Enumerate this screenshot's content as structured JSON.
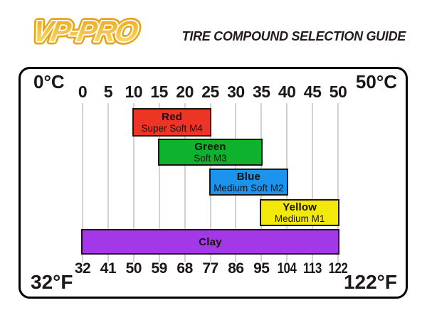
{
  "header": {
    "logo": "VP-PRO",
    "title": "TIRE COMPOUND SELECTION GUIDE"
  },
  "chart_data": {
    "type": "bar",
    "subtype": "horizontal-range-gantt",
    "title": "TIRE COMPOUND SELECTION GUIDE",
    "grid": true,
    "axis_top": {
      "unit": "°C",
      "min": 0,
      "max": 50,
      "ticks": [
        0,
        5,
        10,
        15,
        20,
        25,
        30,
        35,
        40,
        45,
        50
      ],
      "left_label": "0°C",
      "right_label": "50°C"
    },
    "axis_bottom": {
      "unit": "°F",
      "min": 32,
      "max": 122,
      "ticks": [
        32,
        41,
        50,
        59,
        68,
        77,
        86,
        95,
        104,
        113,
        122
      ],
      "left_label": "32°F",
      "right_label": "122°F"
    },
    "bars": [
      {
        "label": "Red",
        "compound": "Super Soft M4",
        "range_c": [
          10,
          25
        ],
        "range_f": [
          50,
          77
        ],
        "color": "#EE3425"
      },
      {
        "label": "Green",
        "compound": "Soft M3",
        "range_c": [
          15,
          35
        ],
        "range_f": [
          59,
          95
        ],
        "color": "#0EB32D"
      },
      {
        "label": "Blue",
        "compound": "Medium Soft M2",
        "range_c": [
          25,
          40
        ],
        "range_f": [
          77,
          104
        ],
        "color": "#1C93EC"
      },
      {
        "label": "Yellow",
        "compound": "Medium M1",
        "range_c": [
          35,
          50
        ],
        "range_f": [
          95,
          122
        ],
        "color": "#F2E90A"
      },
      {
        "label": "Clay",
        "compound": "",
        "range_c": [
          0,
          50
        ],
        "range_f": [
          32,
          122
        ],
        "color": "#A338E8"
      }
    ]
  },
  "colors": {
    "bar_border": "#1a1414",
    "grid_line": "#d2d2d2",
    "box_border": "#000000",
    "text": "#1d1517",
    "logo_outline": "#E8A519",
    "logo_fill_top": "#ECA312",
    "logo_fill_bottom": "#FBE37B"
  }
}
